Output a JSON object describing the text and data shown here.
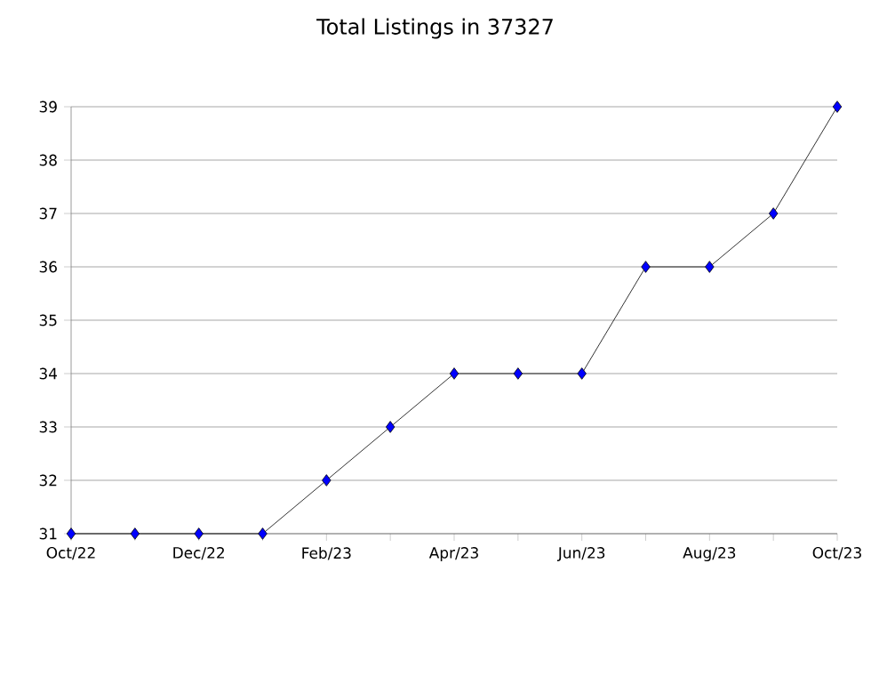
{
  "chart_data": {
    "type": "line",
    "title": "Total Listings in 37327",
    "categories": [
      "Oct/22",
      null,
      "Dec/22",
      null,
      "Feb/23",
      null,
      "Apr/23",
      null,
      "Jun/23",
      null,
      "Aug/23",
      null,
      "Oct/23"
    ],
    "series": [
      {
        "color": "#0000ff",
        "values": [
          31,
          31,
          31,
          31,
          32,
          33,
          34,
          34,
          34,
          36,
          36,
          37,
          39
        ]
      }
    ],
    "ylim": [
      31,
      39
    ],
    "yticks": [
      31,
      32,
      33,
      34,
      35,
      36,
      37,
      38,
      39
    ],
    "grid": "y",
    "marker": "diamond",
    "line_style": "solid"
  }
}
